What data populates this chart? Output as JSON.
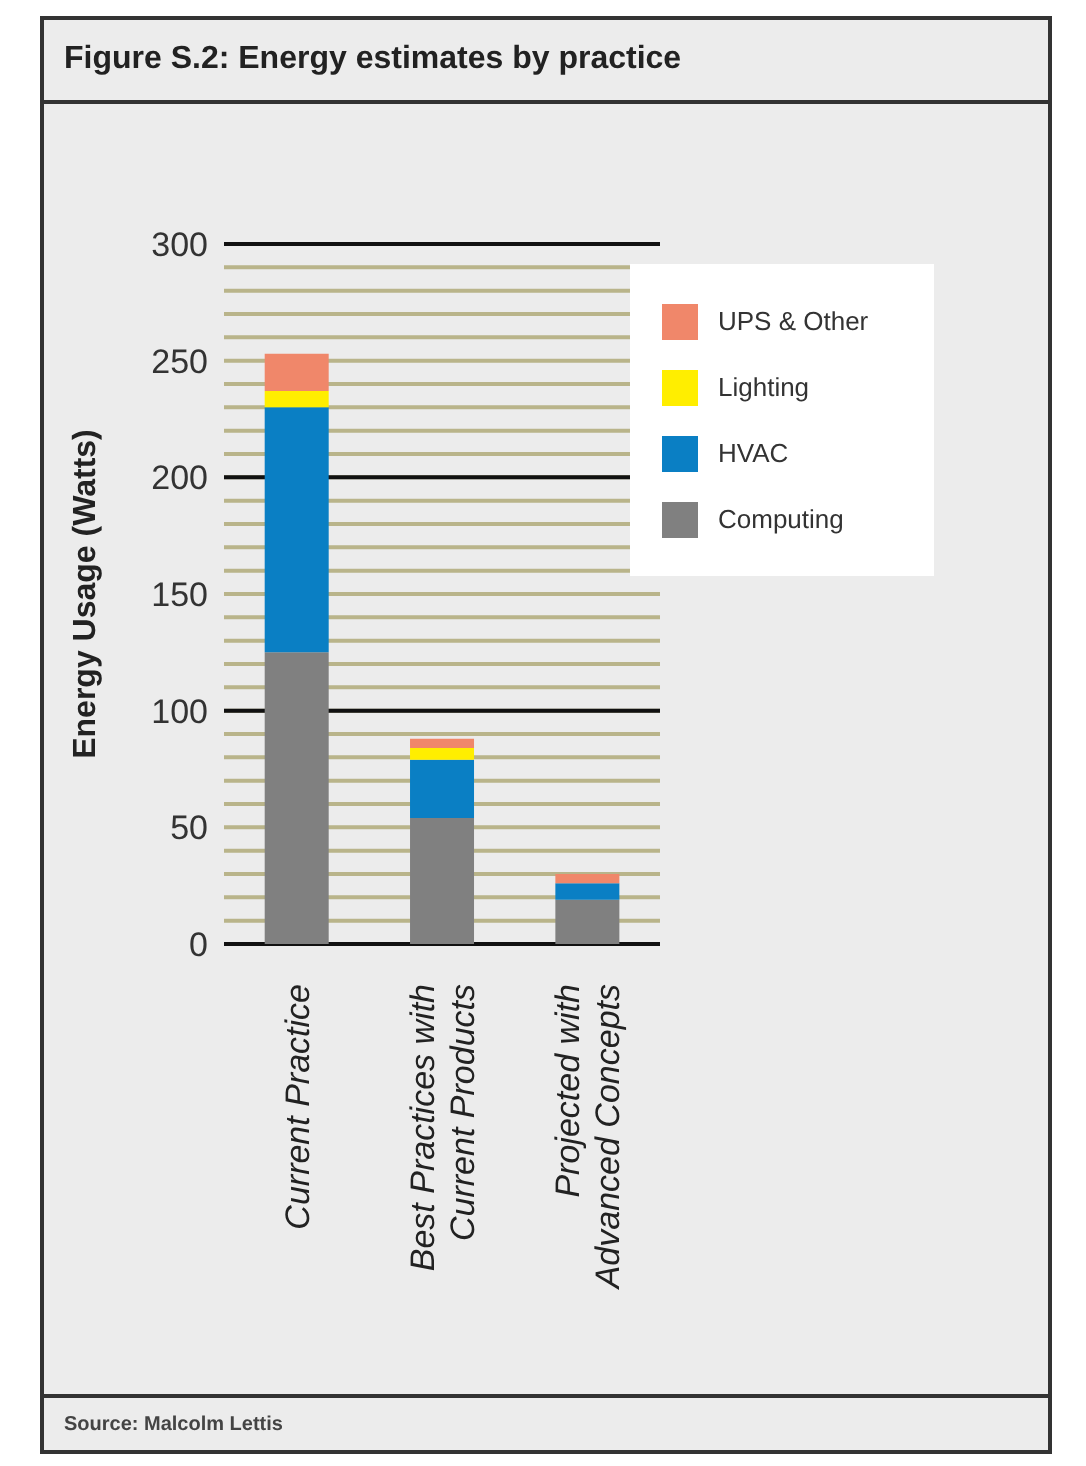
{
  "chart_data": {
    "type": "bar",
    "title": "Figure S.2: Energy estimates by practice",
    "ylabel": "Energy Usage (Watts)",
    "categories": [
      "Current Practice",
      "Best Practices with\nCurrent Products",
      "Projected with\nAdvanced Concepts"
    ],
    "stacked": true,
    "series": [
      {
        "name": "Computing",
        "color": "#808080",
        "values": [
          125,
          54,
          19
        ]
      },
      {
        "name": "HVAC",
        "color": "#0a7fc4",
        "values": [
          105,
          25,
          7
        ]
      },
      {
        "name": "Lighting",
        "color": "#ffee00",
        "values": [
          7,
          5,
          null
        ]
      },
      {
        "name": "UPS & Other",
        "color": "#f0876a",
        "values": [
          16,
          4,
          4
        ]
      }
    ],
    "ylim": [
      0,
      300
    ],
    "yticks": [
      0,
      {
        "value": 10,
        "label": null
      },
      {
        "value": 20,
        "label": null
      },
      {
        "value": 30,
        "label": null
      },
      {
        "value": 40,
        "label": null
      },
      50,
      {
        "value": 60,
        "label": null
      },
      {
        "value": 70,
        "label": null
      },
      {
        "value": 80,
        "label": null
      },
      {
        "value": 90,
        "label": null
      },
      100,
      {
        "value": 110,
        "label": null
      },
      {
        "value": 120,
        "label": null
      },
      {
        "value": 130,
        "label": null
      },
      {
        "value": 140,
        "label": null
      },
      150,
      {
        "value": 160,
        "label": null
      },
      {
        "value": 170,
        "label": null
      },
      {
        "value": 180,
        "label": null
      },
      {
        "value": 190,
        "label": null
      },
      200,
      {
        "value": 210,
        "label": null
      },
      {
        "value": 220,
        "label": null
      },
      {
        "value": 230,
        "label": null
      },
      {
        "value": 240,
        "label": null
      },
      250,
      {
        "value": 260,
        "label": null
      },
      {
        "value": 270,
        "label": null
      },
      {
        "value": 280,
        "label": null
      },
      {
        "value": 290,
        "label": null
      },
      300
    ],
    "grid": "y",
    "legend": "top right",
    "annotations": [
      "Source: Malcolm Lettis"
    ]
  }
}
